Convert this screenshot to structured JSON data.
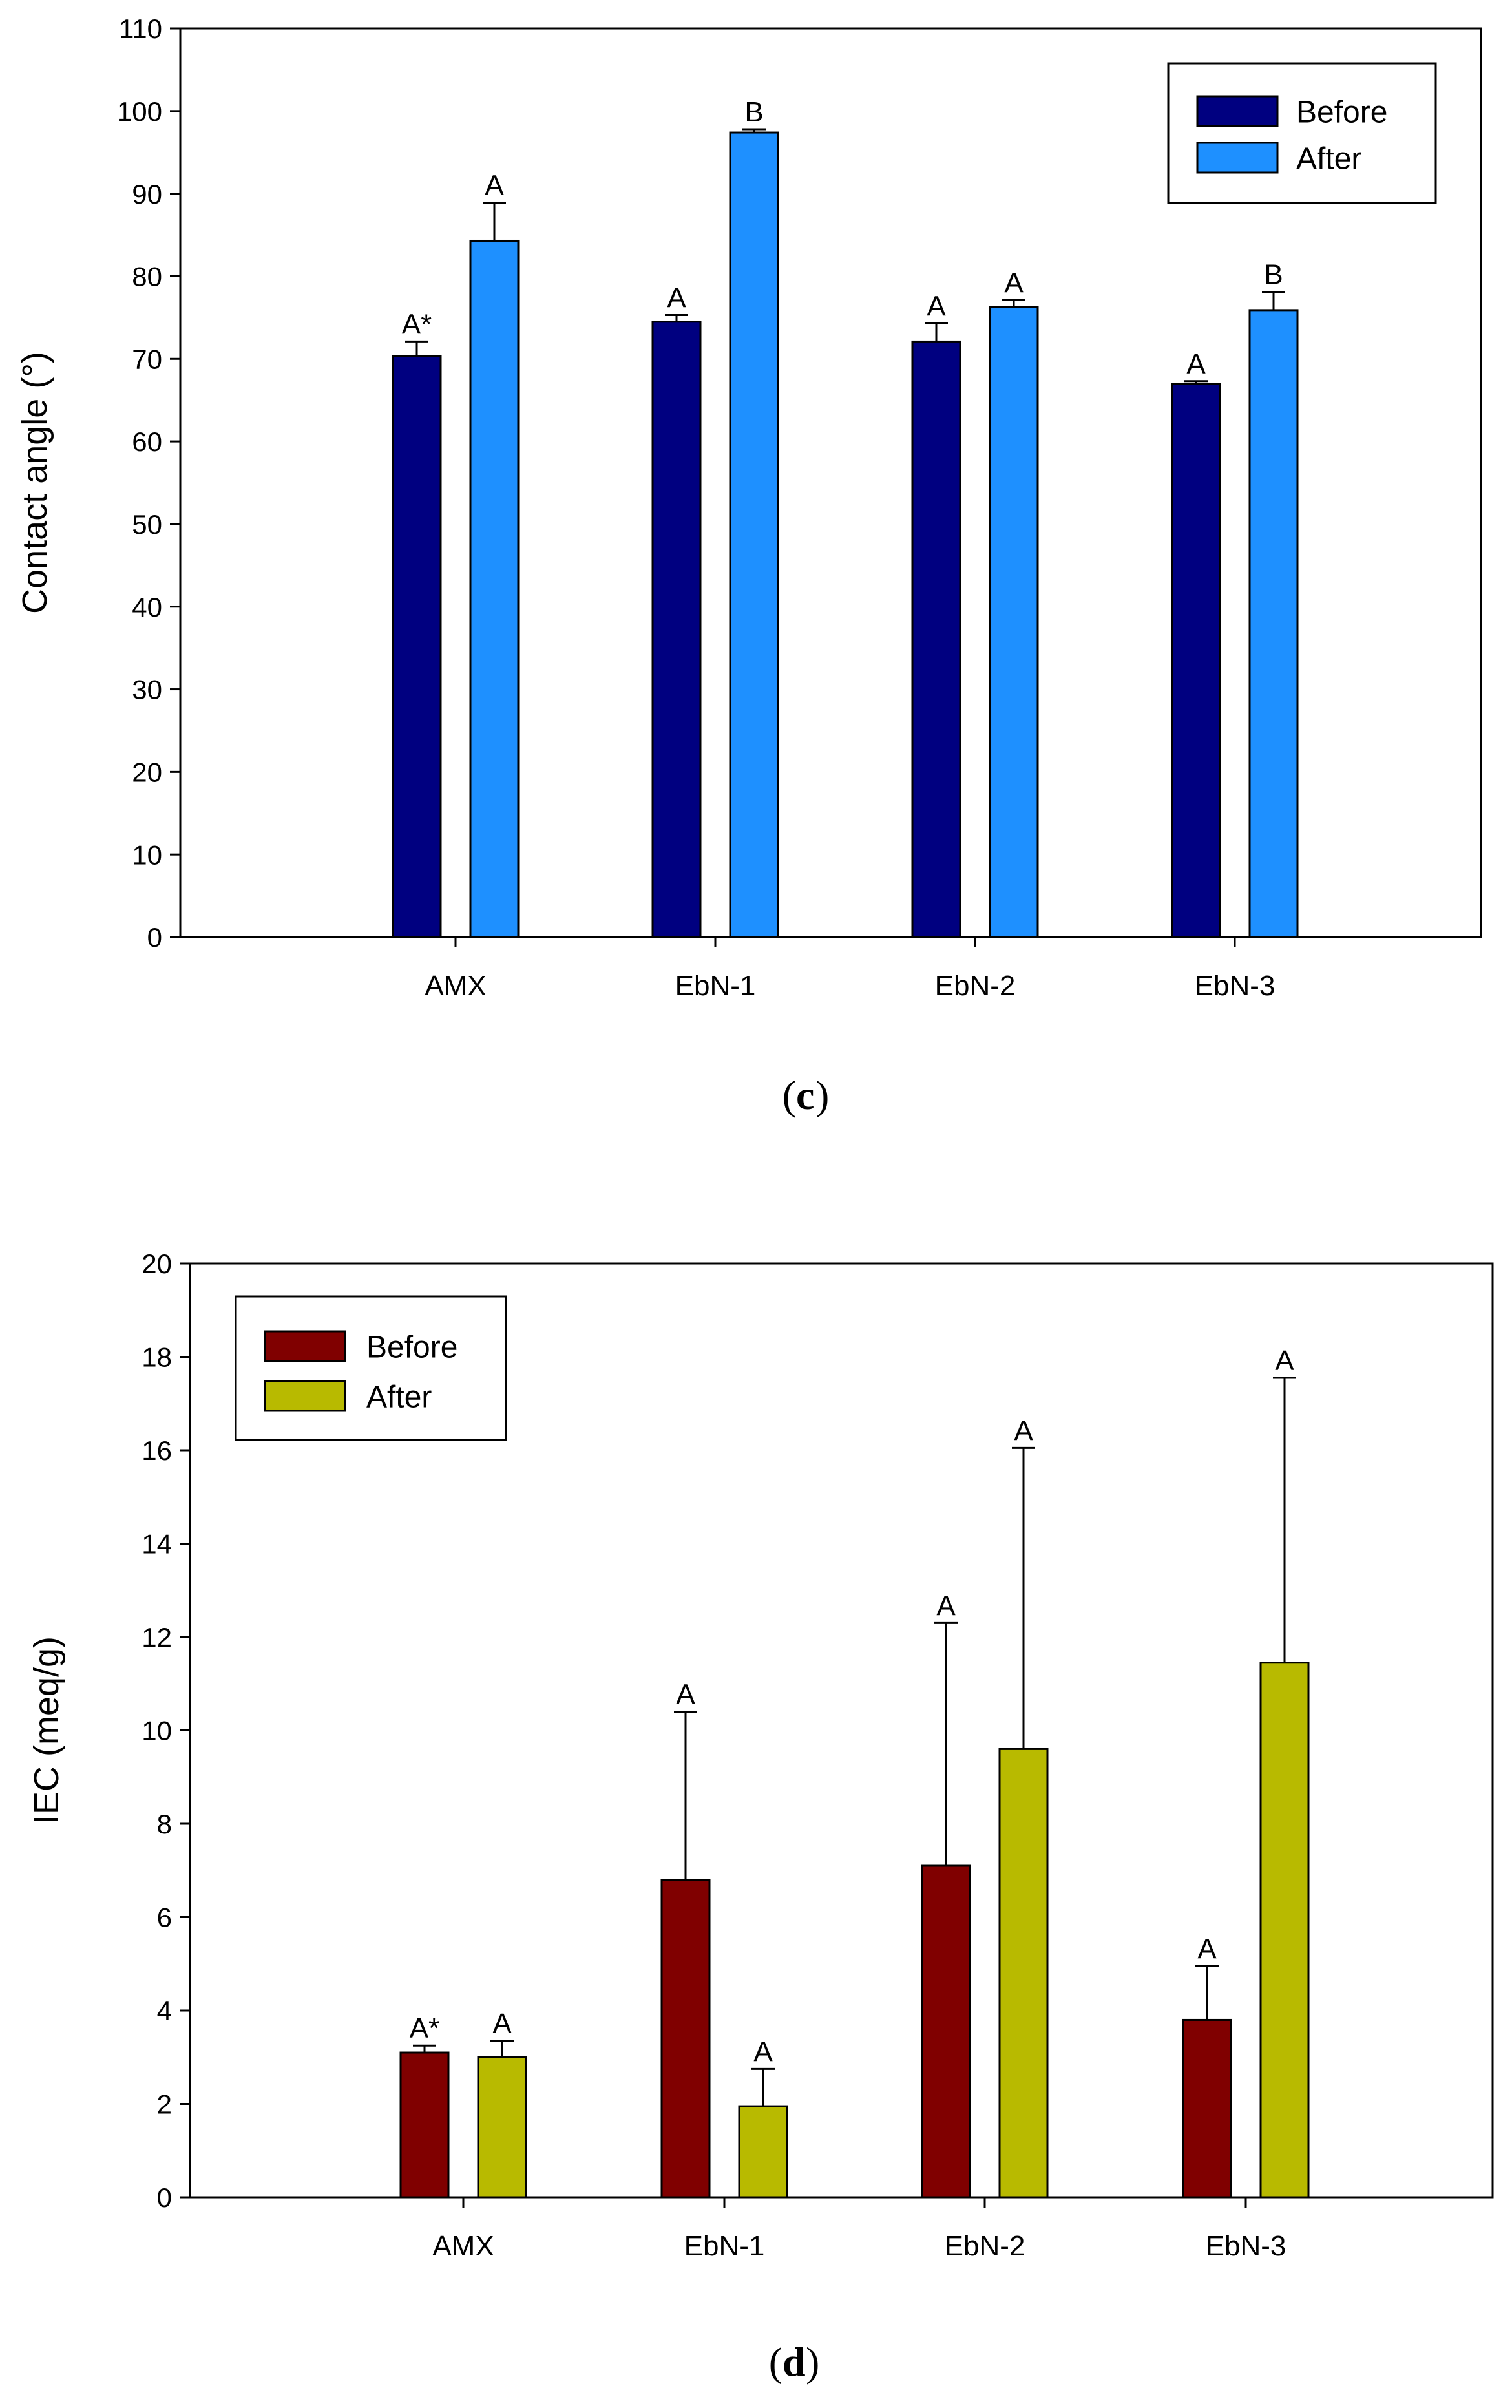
{
  "colors": {
    "c_before": "#000080",
    "c_after": "#1E90FF",
    "d_before": "#800000",
    "d_after": "#B8BA00"
  },
  "chart_data": [
    {
      "id": "c",
      "type": "bar",
      "panel_label": "c",
      "ylabel": "Contact angle (°)",
      "ylim": [
        0,
        110
      ],
      "yticks": [
        0,
        10,
        20,
        30,
        40,
        50,
        60,
        70,
        80,
        90,
        100,
        110
      ],
      "categories": [
        "AMX",
        "EbN-1",
        "EbN-2",
        "EbN-3"
      ],
      "legend_position": "top-right",
      "series": [
        {
          "name": "Before",
          "color": "#000080",
          "values": [
            70.3,
            74.5,
            72.1,
            67.0
          ],
          "errors": [
            1.8,
            0.8,
            2.2,
            0.3
          ],
          "labels": [
            "A*",
            "A",
            "A",
            "A"
          ]
        },
        {
          "name": "After",
          "color": "#1E90FF",
          "values": [
            84.3,
            97.4,
            76.3,
            75.9
          ],
          "errors": [
            4.6,
            0.4,
            0.8,
            2.2
          ],
          "labels": [
            "A",
            "B",
            "A",
            "B"
          ]
        }
      ]
    },
    {
      "id": "d",
      "type": "bar",
      "panel_label": "d",
      "ylabel": "IEC (meq/g)",
      "ylim": [
        0,
        20
      ],
      "yticks": [
        0,
        2,
        4,
        6,
        8,
        10,
        12,
        14,
        16,
        18,
        20
      ],
      "categories": [
        "AMX",
        "EbN-1",
        "EbN-2",
        "EbN-3"
      ],
      "legend_position": "top-left",
      "series": [
        {
          "name": "Before",
          "color": "#800000",
          "values": [
            3.1,
            6.8,
            7.1,
            3.8
          ],
          "errors": [
            0.15,
            3.6,
            5.2,
            1.15
          ],
          "labels": [
            "A*",
            "A",
            "A",
            "A"
          ]
        },
        {
          "name": "After",
          "color": "#B8BA00",
          "values": [
            3.0,
            1.95,
            9.6,
            11.45
          ],
          "errors": [
            0.35,
            0.8,
            6.45,
            6.1
          ],
          "labels": [
            "A",
            "A",
            "A",
            "A"
          ]
        }
      ]
    }
  ]
}
